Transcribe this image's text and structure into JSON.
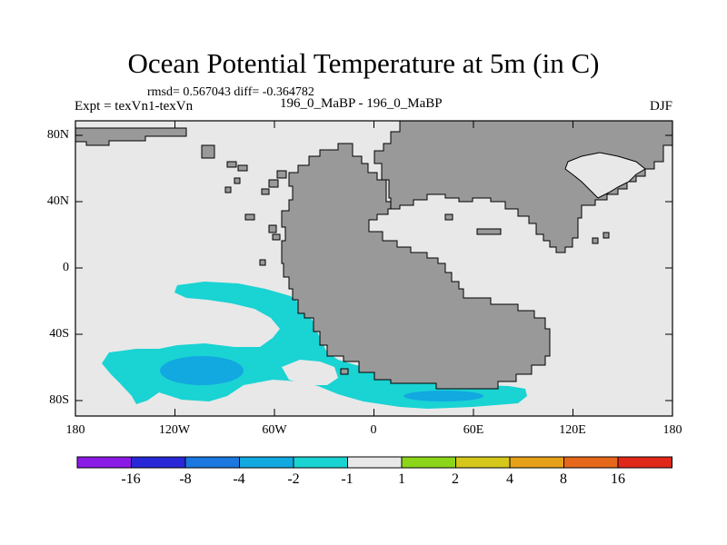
{
  "header": {
    "title": "Ocean Potential Temperature at 5m (in C)",
    "stats": "rmsd= 0.567043 diff= -0.364782",
    "experiment": "Expt = texVn1-texVn",
    "period_label": "196_0_MaBP - 196_0_MaBP",
    "season": "DJF"
  },
  "map": {
    "lat_ticks": [
      "80N",
      "40N",
      "0",
      "40S",
      "80S"
    ],
    "lon_ticks": [
      "180",
      "120W",
      "60W",
      "0",
      "60E",
      "120E",
      "180"
    ],
    "colors": {
      "land": "#999999",
      "zero_band": "#e8e8e8",
      "cyan_band": "#1ad3d3",
      "blue_band": "#12a8e0"
    }
  },
  "legend": {
    "colors": [
      "#8c1ae6",
      "#2828d8",
      "#1a78e0",
      "#12a8e0",
      "#1ad3d3",
      "#e8e8e8",
      "#8cd61a",
      "#d6c81a",
      "#e6a01a",
      "#e6681a",
      "#e0281a"
    ],
    "labels": [
      "-16",
      "-8",
      "-4",
      "-2",
      "-1",
      "1",
      "2",
      "4",
      "8",
      "16"
    ]
  }
}
